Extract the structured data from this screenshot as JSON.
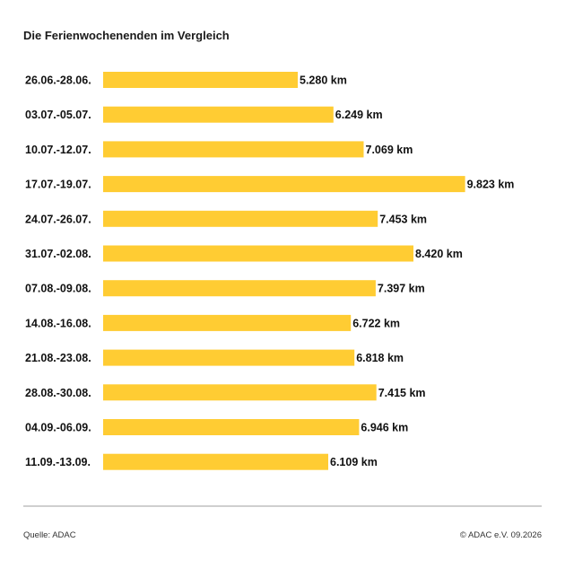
{
  "title": "Die Ferienwochenenden im Vergleich",
  "footer": {
    "source": "Quelle: ADAC",
    "copyright": "© ADAC e.V. 09.2026"
  },
  "colors": {
    "bar": "#FFCC33",
    "text": "#111111",
    "divider": "#cfcfcf"
  },
  "chart_data": {
    "type": "bar",
    "orientation": "horizontal",
    "title": "Die Ferienwochenenden im Vergleich",
    "categories": [
      "26.06.-28.06.",
      "03.07.-05.07.",
      "10.07.-12.07.",
      "17.07.-19.07.",
      "24.07.-26.07.",
      "31.07.-02.08.",
      "07.08.-09.08.",
      "14.08.-16.08.",
      "21.08.-23.08.",
      "28.08.-30.08.",
      "04.09.-06.09.",
      "11.09.-13.09."
    ],
    "values": [
      5280,
      6249,
      7069,
      9823,
      7453,
      8420,
      7397,
      6722,
      6818,
      7415,
      6946,
      6109
    ],
    "value_labels": [
      "5.280 km",
      "6.249 km",
      "7.069 km",
      "9.823 km",
      "7.453 km",
      "8.420 km",
      "7.397 km",
      "6.722 km",
      "6.818 km",
      "7.415 km",
      "6.946 km",
      "6.109 km"
    ],
    "unit": "km",
    "xlim": [
      0,
      10000
    ],
    "grid": false,
    "legend": "none"
  }
}
